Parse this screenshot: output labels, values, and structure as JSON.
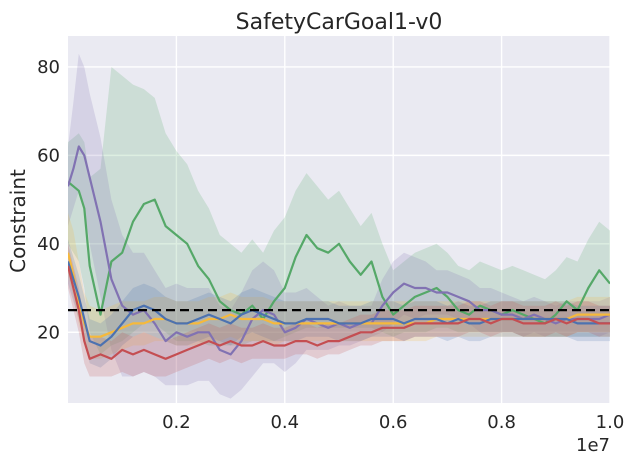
{
  "chart_data": {
    "type": "line",
    "title": "SafetyCarGoal1-v0",
    "xlabel": "",
    "ylabel": "Constraint",
    "x_offset_label": "1e7",
    "xlim": [
      0.0,
      1.0
    ],
    "ylim": [
      4,
      87
    ],
    "x_ticks": [
      0.2,
      0.4,
      0.6,
      0.8,
      1.0
    ],
    "x_tick_labels": [
      "0.2",
      "0.4",
      "0.6",
      "0.8",
      "1.0"
    ],
    "y_ticks": [
      20,
      40,
      60,
      80
    ],
    "y_tick_labels": [
      "20",
      "40",
      "60",
      "80"
    ],
    "grid": true,
    "background": "#eaeaf2",
    "threshold": {
      "value": 25,
      "style": "dashed",
      "color": "#000000"
    },
    "x": [
      0.0,
      0.01,
      0.02,
      0.03,
      0.04,
      0.06,
      0.08,
      0.1,
      0.12,
      0.14,
      0.16,
      0.18,
      0.2,
      0.22,
      0.24,
      0.26,
      0.28,
      0.3,
      0.32,
      0.34,
      0.36,
      0.38,
      0.4,
      0.42,
      0.44,
      0.46,
      0.48,
      0.5,
      0.52,
      0.54,
      0.56,
      0.58,
      0.6,
      0.62,
      0.64,
      0.66,
      0.68,
      0.7,
      0.72,
      0.74,
      0.76,
      0.78,
      0.8,
      0.82,
      0.84,
      0.86,
      0.88,
      0.9,
      0.92,
      0.94,
      0.96,
      0.98,
      1.0
    ],
    "series": [
      {
        "name": "green",
        "color": "#55a868",
        "values": [
          54,
          53,
          52,
          48,
          35,
          24,
          36,
          38,
          45,
          49,
          50,
          44,
          42,
          40,
          35,
          32,
          27,
          25,
          24,
          26,
          23,
          27,
          30,
          37,
          42,
          39,
          38,
          40,
          36,
          33,
          36,
          28,
          24,
          26,
          28,
          29,
          30,
          28,
          25,
          24,
          26,
          25,
          24,
          25,
          24,
          23,
          22,
          24,
          27,
          25,
          30,
          34,
          31
        ],
        "lower": [
          40,
          38,
          36,
          30,
          20,
          15,
          17,
          18,
          20,
          22,
          22,
          20,
          18,
          18,
          18,
          17,
          17,
          17,
          17,
          18,
          18,
          18,
          19,
          20,
          21,
          21,
          21,
          21,
          21,
          21,
          21,
          20,
          19,
          20,
          20,
          20,
          21,
          21,
          20,
          20,
          20,
          20,
          20,
          20,
          19,
          19,
          19,
          19,
          19,
          19,
          19,
          19,
          19
        ],
        "upper": [
          63,
          64,
          65,
          63,
          55,
          57,
          80,
          78,
          76,
          75,
          73,
          65,
          61,
          58,
          52,
          48,
          42,
          40,
          38,
          41,
          38,
          43,
          46,
          52,
          56,
          53,
          50,
          52,
          48,
          44,
          47,
          40,
          34,
          36,
          38,
          39,
          40,
          38,
          35,
          34,
          36,
          35,
          34,
          35,
          34,
          33,
          32,
          34,
          37,
          36,
          41,
          45,
          43
        ]
      },
      {
        "name": "purple",
        "color": "#8172b2",
        "values": [
          53,
          57,
          62,
          60,
          55,
          45,
          32,
          26,
          24,
          25,
          22,
          18,
          20,
          19,
          20,
          20,
          16,
          15,
          18,
          23,
          25,
          24,
          20,
          21,
          23,
          22,
          21,
          22,
          21,
          22,
          22,
          26,
          29,
          31,
          30,
          30,
          29,
          29,
          28,
          27,
          25,
          25,
          24,
          24,
          23,
          24,
          23,
          22,
          23,
          23,
          23,
          23,
          24
        ],
        "lower": [
          44,
          48,
          52,
          48,
          40,
          28,
          16,
          10,
          10,
          11,
          10,
          8,
          8,
          8,
          9,
          9,
          6,
          5,
          7,
          10,
          13,
          13,
          11,
          13,
          16,
          16,
          16,
          17,
          17,
          18,
          19,
          20,
          22,
          24,
          23,
          24,
          24,
          24,
          23,
          22,
          20,
          20,
          20,
          20,
          19,
          20,
          19,
          19,
          19,
          19,
          19,
          19,
          20
        ],
        "upper": [
          62,
          72,
          83,
          80,
          74,
          64,
          50,
          42,
          38,
          38,
          34,
          30,
          31,
          30,
          30,
          30,
          26,
          25,
          29,
          34,
          36,
          34,
          29,
          29,
          30,
          28,
          26,
          27,
          26,
          26,
          26,
          32,
          36,
          38,
          37,
          36,
          34,
          34,
          33,
          32,
          30,
          30,
          29,
          28,
          27,
          28,
          27,
          26,
          27,
          27,
          27,
          27,
          28
        ]
      },
      {
        "name": "orange",
        "color": "#f6b93b",
        "values": [
          38,
          33,
          27,
          22,
          19,
          19,
          20,
          21,
          22,
          22,
          23,
          23,
          22,
          22,
          22,
          23,
          23,
          24,
          23,
          23,
          23,
          22,
          22,
          22,
          22,
          22,
          22,
          22,
          22,
          22,
          22,
          22,
          22,
          22,
          22,
          22,
          23,
          23,
          23,
          23,
          23,
          23,
          23,
          23,
          23,
          23,
          23,
          23,
          23,
          24,
          24,
          24,
          24
        ],
        "lower": [
          33,
          28,
          22,
          17,
          14,
          14,
          15,
          16,
          17,
          17,
          18,
          18,
          17,
          17,
          17,
          18,
          18,
          19,
          18,
          18,
          18,
          17,
          18,
          18,
          18,
          18,
          18,
          18,
          18,
          18,
          18,
          18,
          18,
          18,
          18,
          18,
          19,
          19,
          19,
          19,
          19,
          19,
          19,
          19,
          19,
          19,
          19,
          19,
          19,
          20,
          20,
          20,
          20
        ],
        "upper": [
          47,
          43,
          36,
          29,
          26,
          25,
          26,
          27,
          27,
          27,
          28,
          28,
          27,
          27,
          27,
          28,
          28,
          29,
          28,
          28,
          28,
          27,
          27,
          27,
          27,
          27,
          27,
          27,
          27,
          27,
          27,
          27,
          27,
          27,
          27,
          27,
          27,
          27,
          27,
          27,
          27,
          27,
          27,
          27,
          27,
          27,
          27,
          27,
          27,
          28,
          28,
          28,
          28
        ]
      },
      {
        "name": "blue",
        "color": "#4c72b0",
        "values": [
          36,
          32,
          28,
          23,
          18,
          17,
          19,
          22,
          25,
          26,
          25,
          23,
          22,
          22,
          23,
          24,
          23,
          22,
          24,
          25,
          24,
          23,
          22,
          22,
          23,
          23,
          23,
          22,
          22,
          22,
          23,
          23,
          23,
          22,
          23,
          23,
          23,
          22,
          23,
          22,
          22,
          23,
          23,
          23,
          23,
          23,
          23,
          23,
          23,
          22,
          22,
          22,
          22
        ],
        "lower": [
          31,
          27,
          23,
          18,
          13,
          12,
          14,
          17,
          19,
          20,
          19,
          18,
          17,
          17,
          18,
          19,
          18,
          17,
          19,
          20,
          19,
          18,
          18,
          18,
          19,
          19,
          19,
          18,
          18,
          18,
          19,
          19,
          19,
          18,
          19,
          19,
          19,
          18,
          19,
          18,
          18,
          19,
          19,
          19,
          19,
          19,
          19,
          19,
          19,
          18,
          18,
          18,
          18
        ],
        "upper": [
          41,
          37,
          33,
          28,
          23,
          22,
          24,
          27,
          30,
          31,
          30,
          28,
          27,
          27,
          28,
          29,
          28,
          27,
          29,
          30,
          29,
          28,
          27,
          27,
          27,
          27,
          27,
          26,
          26,
          26,
          27,
          27,
          27,
          26,
          27,
          27,
          27,
          26,
          27,
          26,
          26,
          27,
          27,
          27,
          27,
          27,
          27,
          27,
          27,
          26,
          26,
          26,
          26
        ]
      },
      {
        "name": "red",
        "color": "#c44e52",
        "values": [
          35,
          30,
          25,
          18,
          14,
          15,
          14,
          16,
          15,
          16,
          15,
          14,
          15,
          16,
          17,
          18,
          17,
          18,
          17,
          17,
          18,
          17,
          17,
          18,
          18,
          17,
          18,
          18,
          19,
          20,
          20,
          21,
          21,
          21,
          22,
          22,
          22,
          22,
          22,
          23,
          23,
          22,
          23,
          23,
          22,
          22,
          22,
          23,
          22,
          23,
          23,
          22,
          22
        ],
        "lower": [
          30,
          25,
          20,
          13,
          10,
          10,
          10,
          11,
          10,
          11,
          10,
          10,
          11,
          12,
          13,
          14,
          13,
          14,
          13,
          14,
          14,
          14,
          14,
          15,
          15,
          14,
          15,
          15,
          16,
          17,
          17,
          18,
          18,
          18,
          19,
          19,
          19,
          19,
          19,
          20,
          20,
          19,
          20,
          20,
          19,
          19,
          19,
          20,
          19,
          20,
          20,
          19,
          19
        ],
        "upper": [
          40,
          35,
          30,
          23,
          19,
          19,
          18,
          20,
          19,
          20,
          19,
          18,
          19,
          20,
          21,
          22,
          21,
          22,
          21,
          21,
          22,
          21,
          21,
          22,
          22,
          21,
          22,
          22,
          23,
          24,
          24,
          25,
          25,
          25,
          26,
          26,
          26,
          26,
          26,
          27,
          27,
          26,
          27,
          27,
          26,
          26,
          26,
          27,
          26,
          27,
          27,
          26,
          26
        ]
      }
    ]
  }
}
